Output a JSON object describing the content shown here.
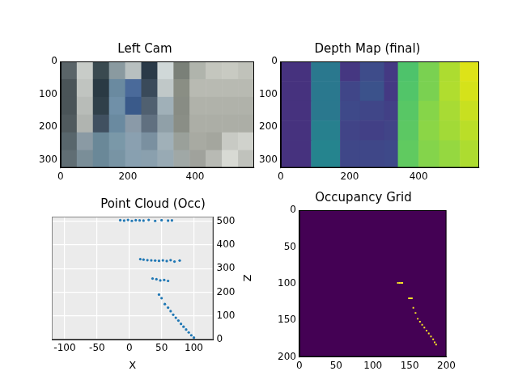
{
  "chart_data": [
    {
      "type": "image",
      "title": "Left Cam",
      "x_edges": [
        0,
        48,
        96,
        144,
        192,
        240,
        288,
        336,
        384,
        432,
        480,
        528,
        576
      ],
      "y_edges": [
        0,
        54,
        108,
        162,
        216,
        270,
        324
      ],
      "cells": [
        [
          "#5a6468",
          "#c8ccc8",
          "#3a4a50",
          "#8a9aa0",
          "#b8c0c0",
          "#2a3a48",
          "#d0d8d8",
          "#7a8078",
          "#b0b4ac",
          "#c4c6be",
          "#c8cac2",
          "#c0c2ba"
        ],
        [
          "#4a5458",
          "#c0c4c0",
          "#2a3a44",
          "#6a8aa0",
          "#4a6a9a",
          "#3a4a5a",
          "#c0c8c8",
          "#8a8e84",
          "#b8bab2",
          "#b8bab2",
          "#b8bab2",
          "#b8bab2"
        ],
        [
          "#4a5458",
          "#b8bcb8",
          "#30404a",
          "#7090a8",
          "#3a5a8a",
          "#506070",
          "#a0b0b8",
          "#888c84",
          "#b0b2aa",
          "#b0b2aa",
          "#b0b2aa",
          "#b0b2aa"
        ],
        [
          "#505a5e",
          "#b0b4b0",
          "#405060",
          "#6a8aa0",
          "#8a9aa8",
          "#607080",
          "#90a0a8",
          "#8a8e86",
          "#acaea6",
          "#acaea6",
          "#acaea6",
          "#acaea6"
        ],
        [
          "#58666c",
          "#8a9aa4",
          "#6a8898",
          "#7a98a8",
          "#8aa0b0",
          "#7a90a0",
          "#a0b0b8",
          "#9aa09a",
          "#a8aaa2",
          "#a4a69e",
          "#c8cac4",
          "#d0d2cc"
        ],
        [
          "#606e74",
          "#7a8e98",
          "#6a8898",
          "#7894a4",
          "#88a0b0",
          "#8aa0ae",
          "#98aab4",
          "#a0a8a6",
          "#a0a29c",
          "#b8bab4",
          "#d8dad4",
          "#c0c2bc"
        ]
      ],
      "xlim": [
        0,
        576
      ],
      "ylim": [
        324,
        0
      ],
      "xticks": [
        0,
        200,
        400
      ],
      "yticks": [
        0,
        100,
        200,
        300
      ]
    },
    {
      "type": "image",
      "title": "Depth Map (final)",
      "x_edges": [
        0,
        88,
        172,
        230,
        300,
        340,
        400,
        460,
        520,
        576
      ],
      "y_edges": [
        0,
        60,
        120,
        180,
        240,
        324
      ],
      "cells": [
        [
          "#46327e",
          "#2a788e",
          "#453781",
          "#3e4c8a",
          "#443983",
          "#4ec36b",
          "#7ad151",
          "#addc30",
          "#dde318"
        ],
        [
          "#46327e",
          "#2a788e",
          "#404688",
          "#3b528b",
          "#443983",
          "#52c569",
          "#7ad151",
          "#b0dd2f",
          "#d5e21a"
        ],
        [
          "#46327e",
          "#2a788e",
          "#3e4989",
          "#404688",
          "#424086",
          "#58c765",
          "#86d549",
          "#a8db34",
          "#c8e020"
        ],
        [
          "#46327e",
          "#27808e",
          "#414487",
          "#424086",
          "#414487",
          "#5cc863",
          "#8bd646",
          "#a2da37",
          "#bade28"
        ],
        [
          "#46327e",
          "#25848e",
          "#3f4788",
          "#3f4788",
          "#3e4989",
          "#60ca60",
          "#84d44b",
          "#95d840",
          "#addc30"
        ]
      ],
      "xlim": [
        0,
        576
      ],
      "ylim": [
        324,
        0
      ],
      "xticks": [
        0,
        200,
        400
      ],
      "yticks": [
        0,
        100,
        200,
        300
      ]
    },
    {
      "type": "scatter",
      "title": "Point Cloud (Occ)",
      "x_label": "X",
      "y_label": "Z",
      "x": [
        -14,
        -8,
        -2,
        4,
        10,
        16,
        22,
        30,
        40,
        50,
        60,
        66,
        17,
        22,
        28,
        34,
        40,
        46,
        52,
        58,
        64,
        70,
        78,
        36,
        42,
        48,
        54,
        60,
        46,
        50,
        55,
        60,
        64,
        68,
        72,
        76,
        80,
        84,
        88,
        92,
        96,
        100
      ],
      "values": [
        505,
        503,
        506,
        502,
        505,
        504,
        503,
        506,
        502,
        505,
        503,
        504,
        340,
        338,
        336,
        335,
        334,
        333,
        335,
        332,
        336,
        330,
        334,
        258,
        255,
        250,
        252,
        248,
        190,
        175,
        150,
        135,
        120,
        105,
        92,
        80,
        66,
        54,
        42,
        30,
        18,
        8
      ],
      "color": "#1f77b4",
      "marker": "circle",
      "xlim": [
        -120,
        130
      ],
      "ylim": [
        0,
        520
      ],
      "xticks": [
        -100,
        -50,
        0,
        50,
        100
      ],
      "yticks": [
        0,
        100,
        200,
        300,
        400,
        500
      ],
      "grid": true
    },
    {
      "type": "occupancy",
      "title": "Occupancy Grid",
      "cells": [
        [
          134,
          99
        ],
        [
          136,
          99
        ],
        [
          138,
          99
        ],
        [
          140,
          99
        ],
        [
          149,
          120
        ],
        [
          151,
          120
        ],
        [
          153,
          120
        ],
        [
          155,
          133
        ],
        [
          158,
          140
        ],
        [
          161,
          148
        ],
        [
          164,
          152
        ],
        [
          167,
          156
        ],
        [
          170,
          160
        ],
        [
          173,
          164
        ],
        [
          176,
          168
        ],
        [
          179,
          172
        ],
        [
          182,
          176
        ],
        [
          184,
          180
        ],
        [
          186,
          183
        ]
      ],
      "color": "#fde725",
      "xlim": [
        0,
        200
      ],
      "ylim": [
        200,
        0
      ],
      "xticks": [
        0,
        50,
        100,
        150,
        200
      ],
      "yticks": [
        0,
        50,
        100,
        150,
        200
      ]
    }
  ]
}
